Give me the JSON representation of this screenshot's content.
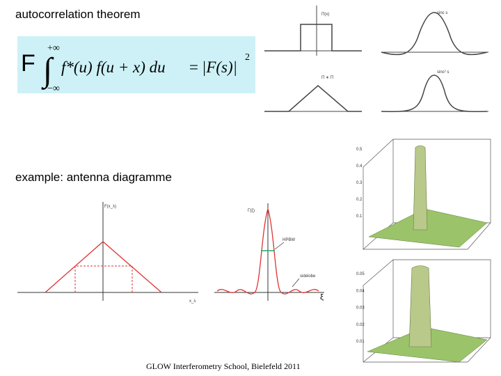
{
  "title": "autocorrelation theorem",
  "formula": {
    "operator": "F",
    "upper_limit": "+∞",
    "lower_limit": "−∞",
    "integral": "∫",
    "integrand": "f*(u) f(u + x) du",
    "equals": "=",
    "rhs": "|F(s)|",
    "exponent": "2"
  },
  "subtitle": "example: antenna diagramme",
  "footer": "GLOW Interferometry School, Bielefeld 2011",
  "plots": {
    "box_label": "Π(x)",
    "sinc_label": "sinc s",
    "triangle_label": "Π ∗ Π",
    "sinc2_label": "sinc² s",
    "aperture_label": "F(x_λ)",
    "x_label": "x_λ",
    "beam_label": "Γ(ξ)",
    "xi_label": "ξ",
    "hpbw_label": "HPBW",
    "sidelobe_label": "sidelobe",
    "surface_top_ticks": [
      "0.5",
      "0.4",
      "0.3",
      "0.2",
      "0.1"
    ],
    "surface_bottom_ticks": [
      "0.05",
      "0.04",
      "0.03",
      "0.02",
      "0.01"
    ]
  }
}
